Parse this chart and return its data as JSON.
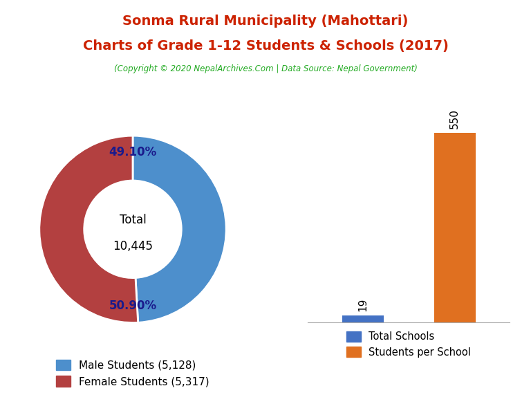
{
  "title_line1": "Sonma Rural Municipality (Mahottari)",
  "title_line2": "Charts of Grade 1-12 Students & Schools (2017)",
  "copyright": "(Copyright © 2020 NepalArchives.Com | Data Source: Nepal Government)",
  "title_color": "#cc2200",
  "copyright_color": "#22aa22",
  "male_students": 5128,
  "female_students": 5317,
  "total_students": 10445,
  "male_pct": 49.1,
  "female_pct": 50.9,
  "male_color": "#4d8fcc",
  "female_color": "#b34040",
  "total_schools": 19,
  "students_per_school": 550,
  "bar_schools_color": "#4472c4",
  "bar_students_color": "#e07020",
  "background_color": "#ffffff",
  "pct_color": "#1a1a8c",
  "center_text_color": "#000000"
}
